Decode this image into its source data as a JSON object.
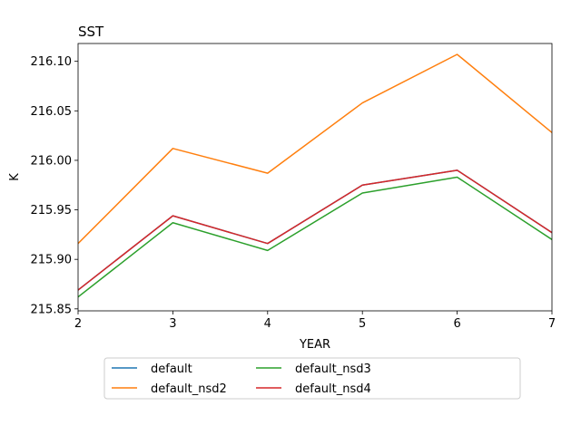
{
  "chart_data": {
    "type": "line",
    "title": "SST",
    "xlabel": "YEAR",
    "ylabel": "K",
    "x": [
      2,
      3,
      4,
      5,
      6,
      7
    ],
    "xlim": [
      2,
      7
    ],
    "ylim": [
      215.848,
      216.118
    ],
    "xticks": [
      2,
      3,
      4,
      5,
      6,
      7
    ],
    "yticks": [
      215.85,
      215.9,
      215.95,
      216.0,
      216.05,
      216.1
    ],
    "ytick_labels": [
      "215.85",
      "215.90",
      "215.95",
      "216.00",
      "216.05",
      "216.10"
    ],
    "grid": false,
    "legend_position": "below",
    "series": [
      {
        "name": "default",
        "color": "#1f77b4",
        "values": [
          215.869,
          215.944,
          215.916,
          215.975,
          215.99,
          215.927
        ]
      },
      {
        "name": "default_nsd2",
        "color": "#ff7f0e",
        "values": [
          215.916,
          216.012,
          215.987,
          216.058,
          216.107,
          216.028
        ]
      },
      {
        "name": "default_nsd3",
        "color": "#2ca02c",
        "values": [
          215.862,
          215.937,
          215.909,
          215.967,
          215.983,
          215.92
        ]
      },
      {
        "name": "default_nsd4",
        "color": "#d62728",
        "values": [
          215.869,
          215.944,
          215.916,
          215.975,
          215.99,
          215.927
        ]
      }
    ]
  }
}
